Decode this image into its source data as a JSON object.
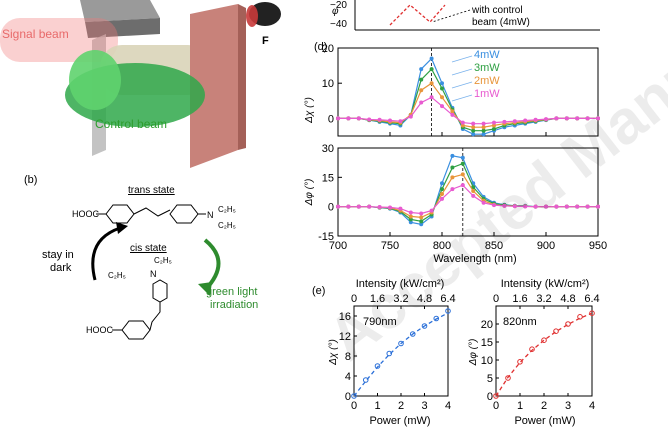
{
  "watermark": "Accepted Manuscript",
  "panel_a": {
    "signal_beam_label": "Signal beam",
    "control_beam_label": "Control beam",
    "film_label": "F",
    "colors": {
      "signal": "#f07878",
      "control": "#2fa84a",
      "wall": "#c8827a"
    }
  },
  "panel_b": {
    "label": "(b)",
    "trans_state": "trans state",
    "cis_state": "cis state",
    "left_text_line1": "stay in",
    "left_text_line2": "dark",
    "right_text_line1": "green light",
    "right_text_line2": "irradiation",
    "trans_left_group": "HOOC",
    "trans_n": "N",
    "trans_sub_top": "C₂H₅",
    "trans_sub_bottom": "C₂H₅",
    "cis_left_group": "C₂H₅",
    "cis_n": "N",
    "cis_top_group": "C₂H₅",
    "cis_bottom_group": "HOOC",
    "colors": {
      "arrow_dark": "#000000",
      "arrow_green": "#2e8b2e",
      "text_green": "#2e8b2e"
    }
  },
  "panel_c_fragment": {
    "ylabel": "φ",
    "ticks": [
      "−20",
      "−40"
    ],
    "annotation_line1": "with control",
    "annotation_line2": "beam (4mW)"
  },
  "panel_d": {
    "label": "(d)",
    "xlabel": "Wavelength (nm)",
    "top_ylabel": "Δχ (°)",
    "bottom_ylabel": "Δφ (°)",
    "legend": [
      "4mW",
      "3mW",
      "2mW",
      "1mW"
    ]
  },
  "panel_e": {
    "label": "(e)",
    "left_top_axis_label": "Intensity (kW/cm²)",
    "right_top_axis_label": "Intensity (kW/cm²)",
    "left_inset": "790nm",
    "right_inset": "820nm",
    "xlabel_left": "Power (mW)",
    "xlabel_right": "Power (mW)",
    "left_ylabel": "Δχ (°)",
    "right_ylabel": "Δφ (°)"
  },
  "chart_data": [
    {
      "type": "line",
      "title": "",
      "panel": "(d) top",
      "xlabel": "Wavelength (nm)",
      "ylabel": "Δχ (°)",
      "xlim": [
        700,
        950
      ],
      "ylim": [
        -5,
        20
      ],
      "xticks": [
        700,
        750,
        800,
        850,
        900,
        950
      ],
      "yticks": [
        0,
        10,
        20
      ],
      "marker_line_x": 790,
      "x": [
        700,
        710,
        720,
        730,
        740,
        750,
        760,
        770,
        780,
        790,
        800,
        810,
        820,
        830,
        840,
        850,
        860,
        870,
        880,
        890,
        900,
        910,
        920,
        930,
        940,
        950
      ],
      "series": [
        {
          "name": "4mW",
          "color": "#3a8fe0",
          "values": [
            0,
            0,
            0,
            -0.5,
            -1,
            -1.5,
            -2,
            1,
            14,
            17,
            10,
            3,
            -3,
            -4.5,
            -4.5,
            -3.5,
            -2.5,
            -2,
            -1.5,
            -1,
            -0.5,
            0,
            0,
            0,
            0,
            0
          ]
        },
        {
          "name": "3mW",
          "color": "#2ea043",
          "values": [
            0,
            0,
            0,
            -0.5,
            -0.8,
            -1.2,
            -1.5,
            1,
            11,
            14,
            8.5,
            2.5,
            -2.5,
            -3.5,
            -3.5,
            -3,
            -2,
            -1.5,
            -1.2,
            -0.8,
            -0.4,
            0,
            0,
            0,
            0,
            0
          ]
        },
        {
          "name": "2mW",
          "color": "#e8953a",
          "values": [
            0,
            0,
            0,
            -0.4,
            -0.6,
            -1,
            -1.2,
            1,
            8,
            10,
            6,
            2,
            -2,
            -2.5,
            -2.5,
            -2,
            -1.5,
            -1.2,
            -0.9,
            -0.6,
            -0.3,
            0,
            0,
            0,
            0,
            0
          ]
        },
        {
          "name": "1mW",
          "color": "#e85bd0",
          "values": [
            0,
            0,
            0,
            -0.3,
            -0.4,
            -0.6,
            -0.8,
            0.5,
            4.5,
            6,
            3.5,
            1,
            -1.2,
            -1.5,
            -1.5,
            -1.2,
            -1,
            -0.8,
            -0.6,
            -0.4,
            -0.2,
            0,
            0,
            0,
            0,
            0
          ]
        }
      ]
    },
    {
      "type": "line",
      "title": "",
      "panel": "(d) bottom",
      "xlabel": "Wavelength (nm)",
      "ylabel": "Δφ (°)",
      "xlim": [
        700,
        950
      ],
      "ylim": [
        -15,
        30
      ],
      "xticks": [
        700,
        750,
        800,
        850,
        900,
        950
      ],
      "yticks": [
        -15,
        0,
        15,
        30
      ],
      "marker_line_x": 820,
      "x": [
        700,
        710,
        720,
        730,
        740,
        750,
        760,
        770,
        780,
        790,
        800,
        810,
        820,
        830,
        840,
        850,
        860,
        870,
        880,
        890,
        900,
        910,
        920,
        930,
        940,
        950
      ],
      "series": [
        {
          "name": "4mW",
          "color": "#3a8fe0",
          "values": [
            0,
            0,
            0,
            0,
            -0.5,
            -1,
            -3,
            -8,
            -9,
            -5,
            12,
            26,
            25,
            12,
            5,
            2,
            1,
            0.5,
            0.5,
            0,
            0,
            0,
            0,
            0,
            0,
            0
          ]
        },
        {
          "name": "3mW",
          "color": "#2ea043",
          "values": [
            0,
            0,
            0,
            0,
            -0.4,
            -0.8,
            -2.5,
            -6.5,
            -7.5,
            -4,
            9,
            20,
            22,
            10,
            4,
            1.5,
            0.8,
            0.4,
            0.3,
            0,
            0,
            0,
            0,
            0,
            0,
            0
          ]
        },
        {
          "name": "2mW",
          "color": "#e8953a",
          "values": [
            0,
            0,
            0,
            0,
            -0.3,
            -0.6,
            -2,
            -5,
            -5.5,
            -3,
            6.5,
            15,
            16.5,
            8,
            3,
            1,
            0.5,
            0.3,
            0.2,
            0,
            0,
            0,
            0,
            0,
            0,
            0
          ]
        },
        {
          "name": "1mW",
          "color": "#e85bd0",
          "values": [
            0,
            0,
            0,
            0,
            -0.2,
            -0.4,
            -1,
            -3,
            -3.5,
            -2,
            4,
            9,
            11,
            5.5,
            2,
            0.8,
            0.4,
            0.2,
            0.1,
            0,
            0,
            0,
            0,
            0,
            0,
            0
          ]
        }
      ]
    },
    {
      "type": "scatter",
      "title": "",
      "panel": "(e) left",
      "xlabel": "Power (mW)",
      "ylabel": "Δχ (°)",
      "top_axis_label": "Intensity (kW/cm²)",
      "top_ticks": [
        "0",
        "1.6",
        "3.2",
        "4.8",
        "6.4"
      ],
      "xlim": [
        0,
        4
      ],
      "ylim": [
        0,
        18
      ],
      "xticks": [
        0,
        1,
        2,
        3,
        4
      ],
      "yticks": [
        0,
        4,
        8,
        12,
        16
      ],
      "x": [
        0,
        0.5,
        1,
        1.5,
        2,
        2.5,
        3,
        3.5,
        4
      ],
      "values": [
        0,
        3.2,
        6,
        8.5,
        10.5,
        12.4,
        14,
        15.5,
        17
      ],
      "fit_values": [
        0,
        3,
        5.8,
        8.3,
        10.5,
        12.4,
        14,
        15.4,
        16.6
      ],
      "color": "#2a6fd8"
    },
    {
      "type": "scatter",
      "title": "",
      "panel": "(e) right",
      "xlabel": "Power (mW)",
      "ylabel": "Δφ (°)",
      "top_axis_label": "Intensity (kW/cm²)",
      "top_ticks": [
        "0",
        "1.6",
        "3.2",
        "4.8",
        "6.4"
      ],
      "xlim": [
        0,
        4
      ],
      "ylim": [
        0,
        25
      ],
      "xticks": [
        0,
        1,
        2,
        3,
        4
      ],
      "yticks": [
        0,
        5,
        10,
        15,
        20
      ],
      "x": [
        0,
        0.5,
        1,
        1.5,
        2,
        2.5,
        3,
        3.5,
        4
      ],
      "values": [
        0,
        5,
        9.5,
        13,
        15.5,
        18,
        20,
        22,
        23
      ],
      "fit_values": [
        0,
        5.2,
        9.3,
        12.7,
        15.5,
        17.9,
        19.9,
        21.6,
        23
      ],
      "color": "#e03030"
    }
  ]
}
